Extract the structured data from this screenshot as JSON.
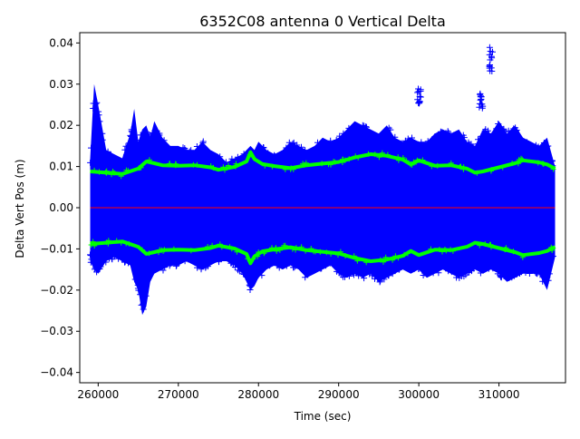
{
  "chart_data": {
    "type": "scatter",
    "title": "6352C08 antenna 0 Vertical Delta",
    "xlabel": "Time (sec)",
    "ylabel": "Delta Vert Pos (m)",
    "xlim": [
      257700,
      318300
    ],
    "ylim": [
      -0.0425,
      0.0425
    ],
    "x_ticks": [
      260000,
      270000,
      280000,
      290000,
      300000,
      310000
    ],
    "x_tick_labels": [
      "260000",
      "270000",
      "280000",
      "290000",
      "300000",
      "310000"
    ],
    "y_ticks": [
      -0.04,
      -0.03,
      -0.02,
      -0.01,
      0.0,
      0.01,
      0.02,
      0.03,
      0.04
    ],
    "y_tick_labels": [
      "−0.04",
      "−0.03",
      "−0.02",
      "−0.01",
      "0.00",
      "0.01",
      "0.02",
      "0.03",
      "0.04"
    ],
    "grid": false,
    "legend": "none",
    "colors": {
      "points": "#0000ff",
      "sigma_band": "#00ff00",
      "zero_line": "#ff0000"
    },
    "series": [
      {
        "marker": "+",
        "color": "#0000ff",
        "x_range": [
          259000,
          317000
        ],
        "envelope": {
          "x": [
            259000,
            259500,
            260000,
            261000,
            262000,
            263000,
            264000,
            264500,
            265000,
            265500,
            266000,
            266500,
            267000,
            268000,
            269000,
            270000,
            271000,
            272000,
            273000,
            274000,
            275000,
            276000,
            277000,
            278000,
            279000,
            279500,
            280000,
            281000,
            282000,
            283000,
            284000,
            285000,
            286000,
            287000,
            288000,
            289000,
            290000,
            291000,
            292000,
            293000,
            294000,
            295000,
            296000,
            297000,
            298000,
            299000,
            300000,
            301000,
            302000,
            303000,
            304000,
            305000,
            306000,
            307000,
            308000,
            309000,
            310000,
            311000,
            312000,
            313000,
            314000,
            315000,
            316000,
            317000
          ],
          "high": [
            0.012,
            0.03,
            0.025,
            0.014,
            0.013,
            0.012,
            0.018,
            0.024,
            0.016,
            0.019,
            0.02,
            0.017,
            0.021,
            0.017,
            0.015,
            0.015,
            0.014,
            0.014,
            0.016,
            0.014,
            0.013,
            0.011,
            0.012,
            0.013,
            0.015,
            0.014,
            0.016,
            0.014,
            0.013,
            0.014,
            0.016,
            0.015,
            0.014,
            0.015,
            0.017,
            0.016,
            0.017,
            0.019,
            0.021,
            0.02,
            0.019,
            0.018,
            0.02,
            0.017,
            0.016,
            0.017,
            0.016,
            0.016,
            0.018,
            0.019,
            0.018,
            0.019,
            0.016,
            0.015,
            0.019,
            0.018,
            0.021,
            0.018,
            0.02,
            0.017,
            0.016,
            0.015,
            0.017,
            0.01
          ],
          "low": [
            -0.013,
            -0.015,
            -0.016,
            -0.013,
            -0.012,
            -0.013,
            -0.014,
            -0.018,
            -0.02,
            -0.026,
            -0.024,
            -0.018,
            -0.016,
            -0.015,
            -0.014,
            -0.014,
            -0.013,
            -0.014,
            -0.015,
            -0.014,
            -0.013,
            -0.013,
            -0.014,
            -0.016,
            -0.02,
            -0.019,
            -0.017,
            -0.015,
            -0.014,
            -0.015,
            -0.014,
            -0.015,
            -0.017,
            -0.016,
            -0.015,
            -0.014,
            -0.016,
            -0.017,
            -0.016,
            -0.017,
            -0.016,
            -0.018,
            -0.017,
            -0.016,
            -0.015,
            -0.016,
            -0.015,
            -0.017,
            -0.016,
            -0.015,
            -0.016,
            -0.017,
            -0.016,
            -0.015,
            -0.016,
            -0.015,
            -0.016,
            -0.018,
            -0.017,
            -0.016,
            -0.016,
            -0.016,
            -0.02,
            -0.012
          ]
        },
        "outlier_clusters": [
          {
            "x": 300000,
            "y_min": 0.025,
            "y_max": 0.029
          },
          {
            "x": 309000,
            "y_min": 0.033,
            "y_max": 0.039
          },
          {
            "x": 307800,
            "y_min": 0.024,
            "y_max": 0.028
          }
        ]
      },
      {
        "marker": "+",
        "color": "#00ff00",
        "x": [
          259000,
          261000,
          263000,
          265000,
          266000,
          267000,
          268000,
          270000,
          272000,
          274000,
          275000,
          277000,
          278500,
          279000,
          279500,
          280500,
          282000,
          284000,
          286000,
          288000,
          290000,
          292000,
          294000,
          296000,
          298000,
          299000,
          300000,
          302000,
          304000,
          306000,
          307000,
          308000,
          310000,
          312000,
          313000,
          315000,
          316000,
          317000
        ],
        "y_positive": [
          0.0088,
          0.0085,
          0.0082,
          0.0095,
          0.0112,
          0.0108,
          0.0103,
          0.0102,
          0.0103,
          0.0098,
          0.0092,
          0.0099,
          0.0112,
          0.0135,
          0.0118,
          0.0106,
          0.0101,
          0.0096,
          0.0103,
          0.0107,
          0.0111,
          0.0122,
          0.013,
          0.0126,
          0.0117,
          0.0105,
          0.0115,
          0.0102,
          0.0103,
          0.0095,
          0.0085,
          0.0088,
          0.0098,
          0.0108,
          0.0115,
          0.011,
          0.0105,
          0.0095
        ],
        "y_negative": [
          -0.0088,
          -0.0085,
          -0.0082,
          -0.0095,
          -0.0112,
          -0.0108,
          -0.0103,
          -0.0102,
          -0.0103,
          -0.0098,
          -0.0092,
          -0.0099,
          -0.0112,
          -0.0135,
          -0.0118,
          -0.0106,
          -0.0101,
          -0.0096,
          -0.0103,
          -0.0107,
          -0.0111,
          -0.0122,
          -0.013,
          -0.0126,
          -0.0117,
          -0.0105,
          -0.0115,
          -0.0102,
          -0.0103,
          -0.0095,
          -0.0085,
          -0.0088,
          -0.0098,
          -0.0108,
          -0.0115,
          -0.011,
          -0.0105,
          -0.0095
        ]
      },
      {
        "line": true,
        "color": "#ff0000",
        "x": [
          259000,
          317000
        ],
        "y": [
          0.0,
          0.0
        ]
      }
    ]
  }
}
